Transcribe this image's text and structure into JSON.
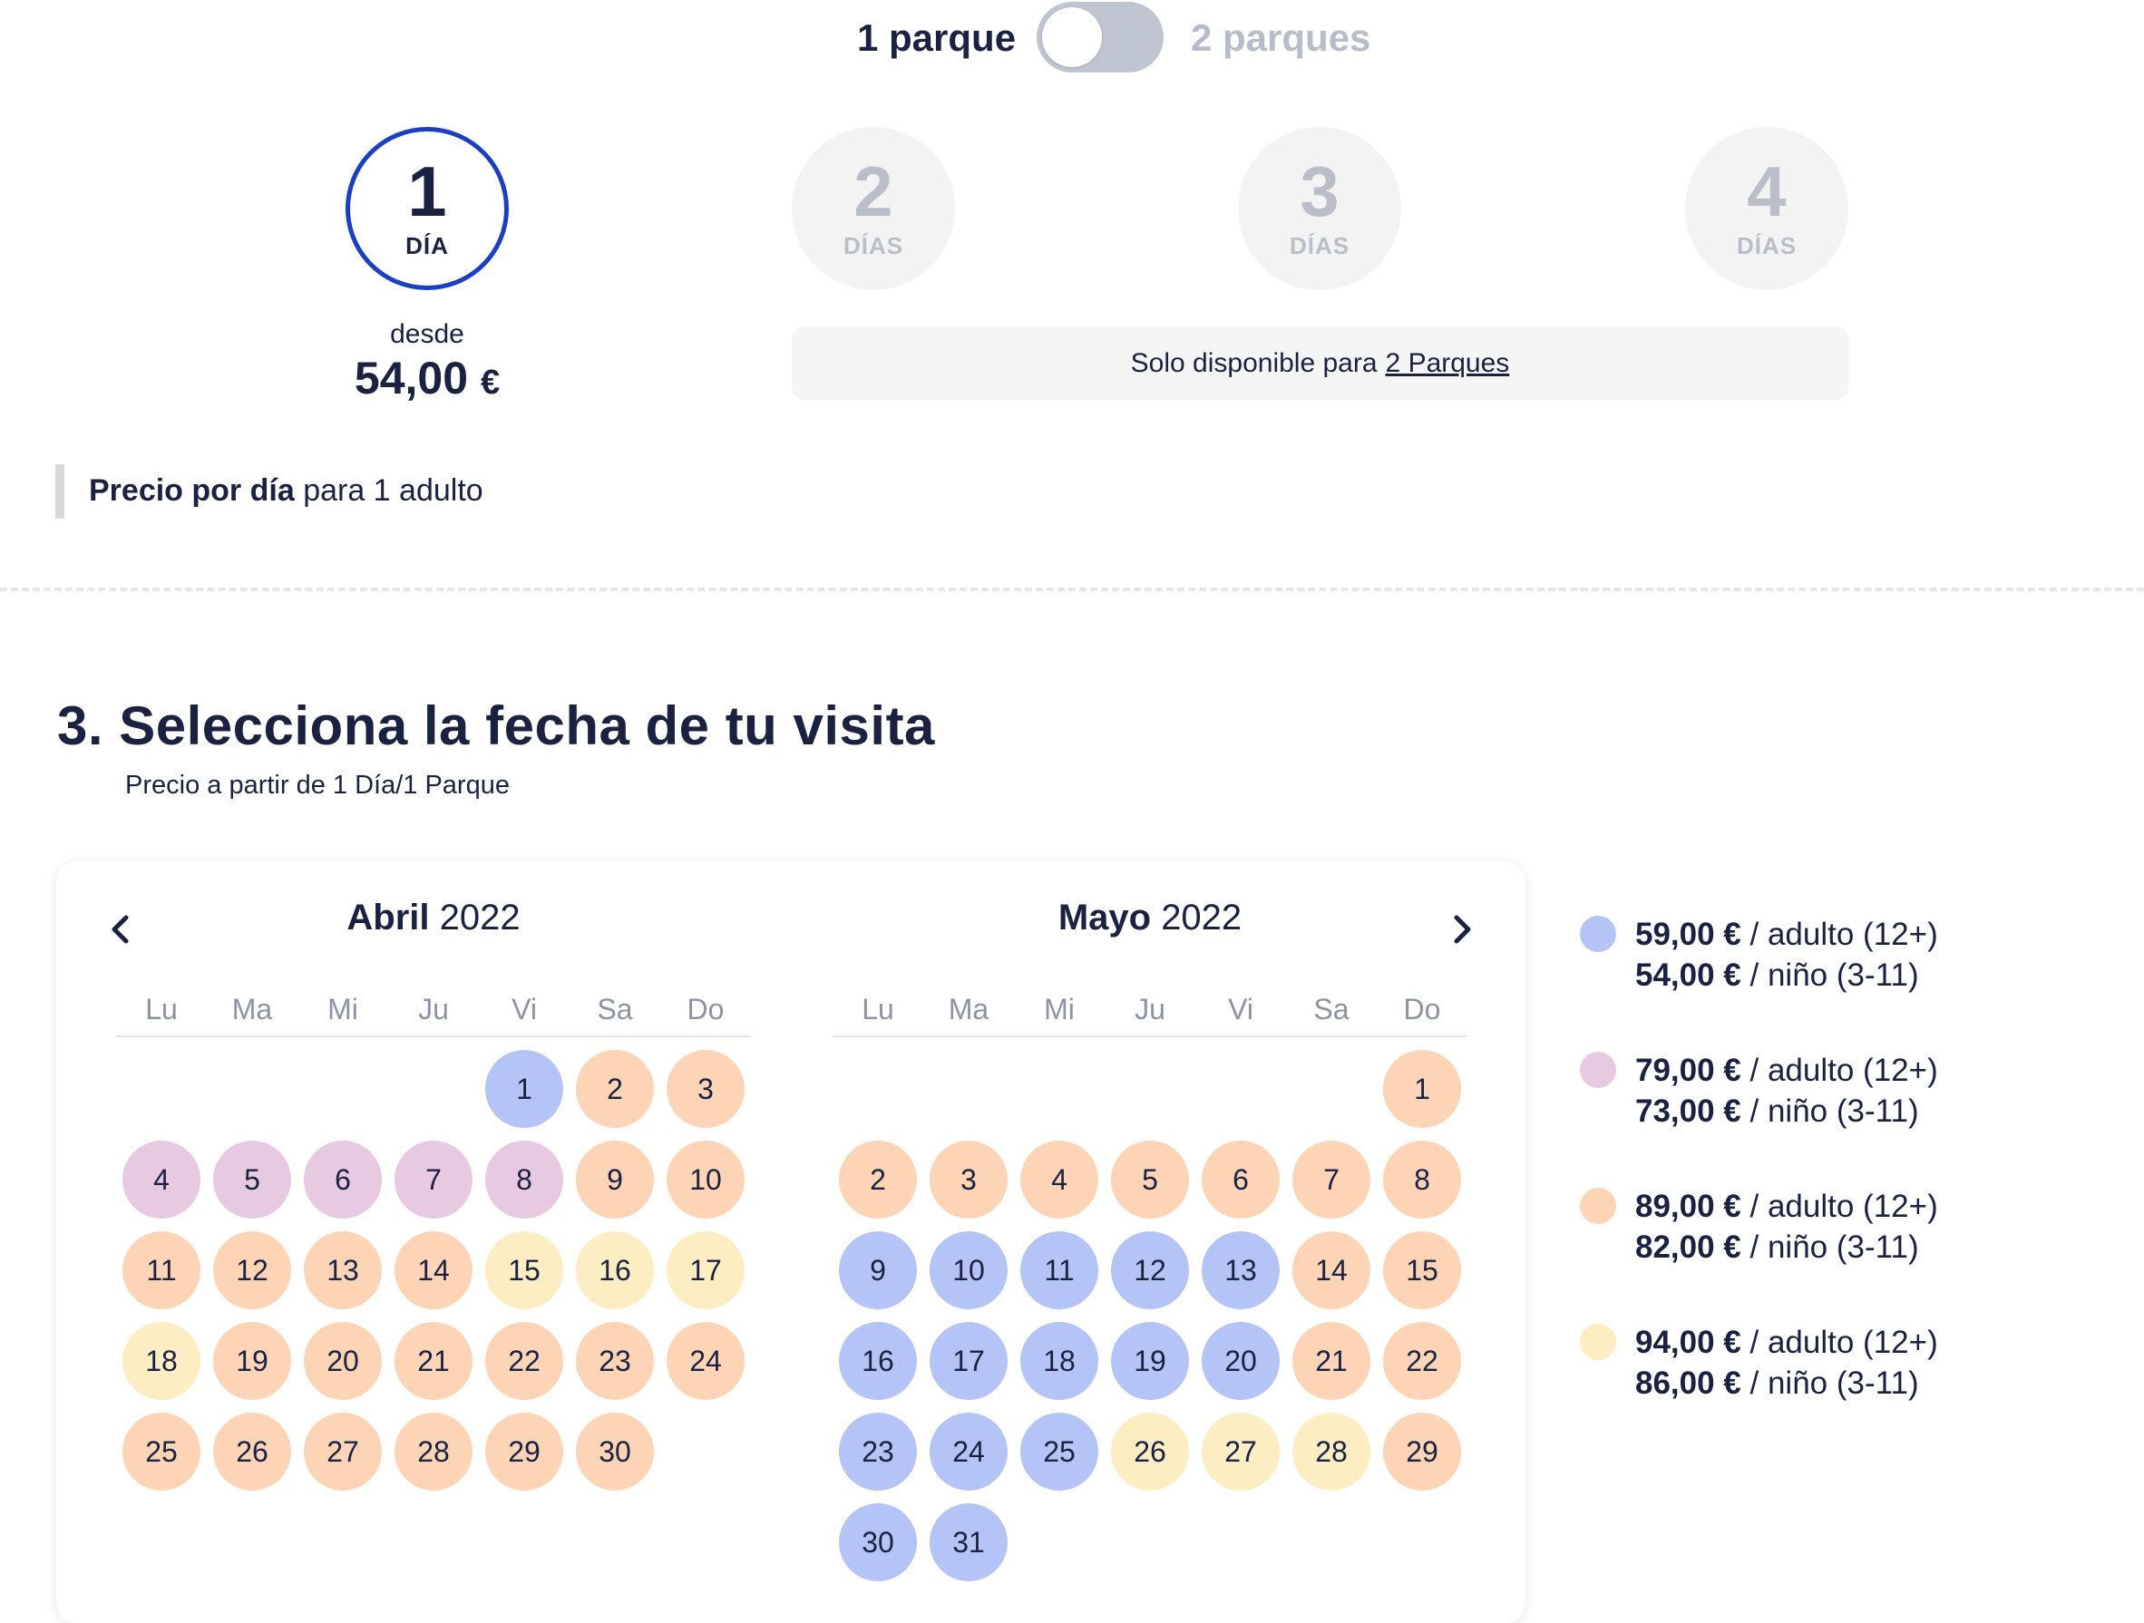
{
  "park_toggle": {
    "one": "1 parque",
    "two": "2 parques"
  },
  "days": [
    {
      "num": "1",
      "unit": "DÍA",
      "active": true
    },
    {
      "num": "2",
      "unit": "DÍAS",
      "active": false
    },
    {
      "num": "3",
      "unit": "DÍAS",
      "active": false
    },
    {
      "num": "4",
      "unit": "DÍAS",
      "active": false
    }
  ],
  "from": {
    "label": "desde",
    "amount": "54,00",
    "currency": "€"
  },
  "only_available": {
    "text": "Solo disponible para",
    "link": "2 Parques"
  },
  "price_note": {
    "bold": "Precio por día",
    "rest": "para 1 adulto"
  },
  "section": {
    "title": "3. Selecciona la fecha de tu visita",
    "subtitle": "Precio a partir de 1 Día/1 Parque"
  },
  "weekdays": [
    "Lu",
    "Ma",
    "Mi",
    "Ju",
    "Vi",
    "Sa",
    "Do"
  ],
  "months": [
    {
      "name": "Abril",
      "year": "2022",
      "offset": 4,
      "days": [
        "blue",
        "orange",
        "orange",
        "pink",
        "pink",
        "pink",
        "pink",
        "pink",
        "orange",
        "orange",
        "orange",
        "orange",
        "orange",
        "orange",
        "yellow",
        "yellow",
        "yellow",
        "yellow",
        "orange",
        "orange",
        "orange",
        "orange",
        "orange",
        "orange",
        "orange",
        "orange",
        "orange",
        "orange",
        "orange",
        "orange"
      ]
    },
    {
      "name": "Mayo",
      "year": "2022",
      "offset": 6,
      "days": [
        "orange",
        "orange",
        "orange",
        "orange",
        "orange",
        "orange",
        "orange",
        "orange",
        "blue",
        "blue",
        "blue",
        "blue",
        "blue",
        "orange",
        "orange",
        "blue",
        "blue",
        "blue",
        "blue",
        "blue",
        "orange",
        "orange",
        "blue",
        "blue",
        "blue",
        "yellow",
        "yellow",
        "yellow",
        "orange",
        "blue",
        "blue"
      ]
    }
  ],
  "legend": [
    {
      "color": "#b5c4f6",
      "adult_price": "59,00 €",
      "adult_label": "/ adulto (12+)",
      "child_price": "54,00 €",
      "child_label": "/ niño (3-11)"
    },
    {
      "color": "#e7c9e2",
      "adult_price": "79,00 €",
      "adult_label": "/ adulto (12+)",
      "child_price": "73,00 €",
      "child_label": "/ niño (3-11)"
    },
    {
      "color": "#fdd5b6",
      "adult_price": "89,00 €",
      "adult_label": "/ adulto (12+)",
      "child_price": "82,00 €",
      "child_label": "/ niño (3-11)"
    },
    {
      "color": "#fdedc2",
      "adult_price": "94,00 €",
      "adult_label": "/ adulto (12+)",
      "child_price": "86,00 €",
      "child_label": "/ niño (3-11)"
    }
  ],
  "icons": {
    "prev": "chevron-left-icon",
    "next": "chevron-right-icon"
  }
}
